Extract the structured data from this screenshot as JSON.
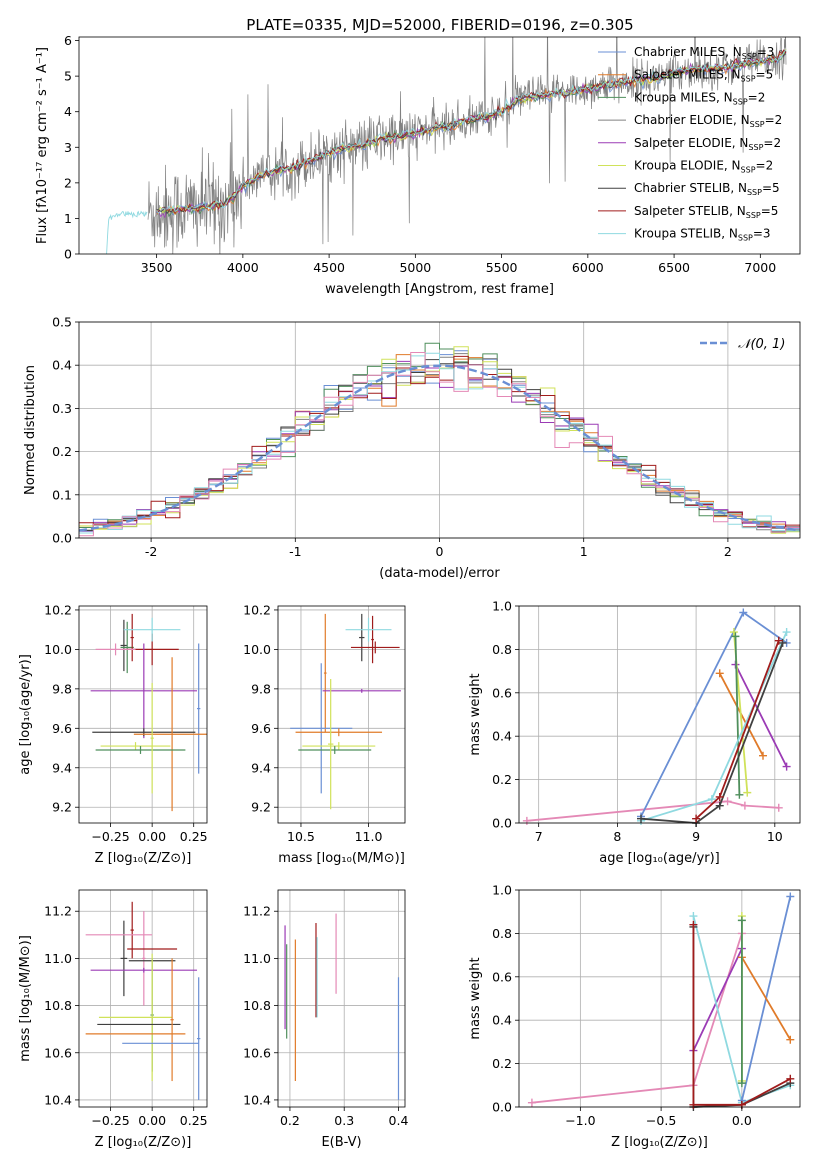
{
  "figure_title": "PLATE=0335, MJD=52000, FIBERID=0196, z=0.305",
  "colors": {
    "blue": "#6a8fd4",
    "orange": "#e07b2a",
    "green": "#4f8f5c",
    "purple": "#9b3bb5",
    "lime": "#d0e25a",
    "dark": "#404040",
    "red": "#a01c1c",
    "cyan": "#8fd9e0",
    "pink": "#e489b6",
    "gray": "#808080"
  },
  "chart_data": [
    {
      "id": "spectrum",
      "type": "line",
      "title": "",
      "xlabel": "wavelength [Angstrom, rest frame]",
      "ylabel": "Flux [fλ10⁻¹⁷ erg cm⁻² s⁻¹ A⁻¹]",
      "xlim": [
        3050,
        7230
      ],
      "ylim": [
        0,
        6.1
      ],
      "xticks": [
        3500,
        4000,
        4500,
        5000,
        5500,
        6000,
        6500,
        7000
      ],
      "yticks": [
        0,
        1,
        2,
        3,
        4,
        5,
        6
      ],
      "grid": false,
      "legend_position": "right",
      "legend": [
        {
          "label": "Chabrier MILES, N",
          "sub": "SSP",
          "tail": "=3",
          "color": "blue"
        },
        {
          "label": "Salpeter MILES, N",
          "sub": "SSP",
          "tail": "=5",
          "color": "orange"
        },
        {
          "label": "Kroupa MILES, N",
          "sub": "SSP",
          "tail": "=2",
          "color": "green"
        },
        {
          "label": "Chabrier ELODIE, N",
          "sub": "SSP",
          "tail": "=2",
          "color": "gray"
        },
        {
          "label": "Salpeter ELODIE, N",
          "sub": "SSP",
          "tail": "=2",
          "color": "purple"
        },
        {
          "label": "Kroupa ELODIE, N",
          "sub": "SSP",
          "tail": "=2",
          "color": "lime"
        },
        {
          "label": "Chabrier STELIB, N",
          "sub": "SSP",
          "tail": "=5",
          "color": "dark"
        },
        {
          "label": "Salpeter STELIB, N",
          "sub": "SSP",
          "tail": "=5",
          "color": "red"
        },
        {
          "label": "Kroupa STELIB, N",
          "sub": "SSP",
          "tail": "=3",
          "color": "cyan"
        }
      ],
      "continuum": [
        [
          3210,
          0.0
        ],
        [
          3220,
          1.0
        ],
        [
          3300,
          1.15
        ],
        [
          3400,
          1.12
        ],
        [
          3500,
          1.2
        ],
        [
          3600,
          1.25
        ],
        [
          3700,
          1.3
        ],
        [
          3800,
          1.35
        ],
        [
          3900,
          1.4
        ],
        [
          4000,
          1.9
        ],
        [
          4100,
          2.2
        ],
        [
          4200,
          2.35
        ],
        [
          4300,
          2.45
        ],
        [
          4400,
          2.65
        ],
        [
          4500,
          2.85
        ],
        [
          4600,
          3.0
        ],
        [
          4700,
          3.05
        ],
        [
          4800,
          3.25
        ],
        [
          4900,
          3.3
        ],
        [
          5000,
          3.4
        ],
        [
          5100,
          3.55
        ],
        [
          5200,
          3.6
        ],
        [
          5300,
          3.75
        ],
        [
          5400,
          3.85
        ],
        [
          5500,
          4.0
        ],
        [
          5600,
          4.35
        ],
        [
          5700,
          4.45
        ],
        [
          5800,
          4.5
        ],
        [
          5900,
          4.55
        ],
        [
          6000,
          4.65
        ],
        [
          6100,
          4.75
        ],
        [
          6200,
          4.8
        ],
        [
          6300,
          4.9
        ],
        [
          6400,
          4.95
        ],
        [
          6500,
          5.1
        ],
        [
          6600,
          5.2
        ],
        [
          6700,
          5.2
        ],
        [
          6800,
          5.25
        ],
        [
          6900,
          5.35
        ],
        [
          7000,
          5.4
        ],
        [
          7100,
          5.5
        ],
        [
          7160,
          5.75
        ]
      ],
      "noise_range": [
        3450,
        7150
      ]
    },
    {
      "id": "residuals",
      "type": "histogram",
      "title": "",
      "xlabel": "(data-model)/error",
      "ylabel": "Normed distribution",
      "xlim": [
        -2.5,
        2.5
      ],
      "ylim": [
        0,
        0.5
      ],
      "xticks": [
        -2,
        -1,
        0,
        1,
        2
      ],
      "yticks": [
        0.0,
        0.1,
        0.2,
        0.3,
        0.4,
        0.5
      ],
      "grid": true,
      "legend_position": "top-right",
      "legend": [
        {
          "label": "𝒩(0, 1)",
          "color": "blue",
          "style": "dashed"
        }
      ],
      "bin_width": 0.1,
      "series_colors": [
        "blue",
        "orange",
        "green",
        "gray",
        "purple",
        "lime",
        "dark",
        "red",
        "cyan",
        "pink"
      ]
    },
    {
      "id": "age_vs_z",
      "type": "errorbar",
      "xlabel": "Z [log₁₀(Z/Z⊙)]",
      "ylabel": "age  [log₁₀(age/yr)]",
      "xlim": [
        -0.44,
        0.33
      ],
      "ylim": [
        9.12,
        10.22
      ],
      "xticks": [
        -0.25,
        0.0,
        0.25
      ],
      "xticklabels": [
        "−0.25",
        "0.00",
        "0.25"
      ],
      "yticks": [
        9.2,
        9.4,
        9.6,
        9.8,
        10.0,
        10.2
      ],
      "grid": true,
      "points": [
        {
          "x": -0.17,
          "y": 10.02,
          "xerr": 0.02,
          "yerr": 0.13,
          "color": "dark"
        },
        {
          "x": -0.15,
          "y": 10.01,
          "xerr": 0.04,
          "yerr": 0.13,
          "color": "green"
        },
        {
          "x": -0.12,
          "y": 10.06,
          "xerr": 0.01,
          "yerr": 0.12,
          "color": "red"
        },
        {
          "x": 0.0,
          "y": 10.0,
          "xerr": 0.16,
          "yerr": 0.08,
          "color": "red"
        },
        {
          "x": 0.0,
          "y": 10.1,
          "xerr": 0.17,
          "yerr": 0.06,
          "color": "cyan"
        },
        {
          "x": -0.22,
          "y": 10.0,
          "xerr": 0.12,
          "yerr": 0.03,
          "color": "pink"
        },
        {
          "x": 0.28,
          "y": 9.7,
          "xerr": 0.01,
          "yerr": 0.33,
          "color": "blue"
        },
        {
          "x": -0.05,
          "y": 9.79,
          "xerr": 0.32,
          "yerr": 0.24,
          "color": "purple"
        },
        {
          "x": -0.05,
          "y": 9.58,
          "xerr": 0.31,
          "yerr": 0.02,
          "color": "dark"
        },
        {
          "x": 0.12,
          "y": 9.57,
          "xerr": 0.23,
          "yerr": 0.39,
          "color": "orange"
        },
        {
          "x": -0.1,
          "y": 9.51,
          "xerr": 0.21,
          "yerr": 0.02,
          "color": "lime"
        },
        {
          "x": -0.07,
          "y": 9.49,
          "xerr": 0.27,
          "yerr": 0.02,
          "color": "green"
        },
        {
          "x": 0.0,
          "y": 9.55,
          "xerr": 0.01,
          "yerr": 0.28,
          "color": "lime"
        }
      ]
    },
    {
      "id": "age_vs_mass",
      "type": "errorbar",
      "xlabel": "mass [log₁₀(M/M⊙)]",
      "ylabel": "",
      "xlim": [
        10.33,
        11.27
      ],
      "ylim": [
        9.12,
        10.22
      ],
      "xticks": [
        10.5,
        11.0
      ],
      "xticklabels": [
        "10.5",
        "11.0"
      ],
      "yticks": [
        9.2,
        9.4,
        9.6,
        9.8,
        10.0,
        10.2
      ],
      "grid": true,
      "points": [
        {
          "x": 10.95,
          "y": 10.06,
          "xerr": 0.02,
          "yerr": 0.12,
          "color": "dark"
        },
        {
          "x": 11.03,
          "y": 10.05,
          "xerr": 0.01,
          "yerr": 0.12,
          "color": "red"
        },
        {
          "x": 11.0,
          "y": 10.1,
          "xerr": 0.17,
          "yerr": 0.06,
          "color": "cyan"
        },
        {
          "x": 11.05,
          "y": 10.01,
          "xerr": 0.18,
          "yerr": 0.03,
          "color": "red"
        },
        {
          "x": 10.68,
          "y": 9.88,
          "xerr": 0.01,
          "yerr": 0.3,
          "color": "orange"
        },
        {
          "x": 10.95,
          "y": 9.79,
          "xerr": 0.29,
          "yerr": 0.01,
          "color": "purple"
        },
        {
          "x": 10.65,
          "y": 9.6,
          "xerr": 0.23,
          "yerr": 0.33,
          "color": "blue"
        },
        {
          "x": 10.78,
          "y": 9.58,
          "xerr": 0.32,
          "yerr": 0.02,
          "color": "orange"
        },
        {
          "x": 10.78,
          "y": 9.51,
          "xerr": 0.27,
          "yerr": 0.02,
          "color": "lime"
        },
        {
          "x": 10.75,
          "y": 9.49,
          "xerr": 0.27,
          "yerr": 0.02,
          "color": "green"
        },
        {
          "x": 10.72,
          "y": 9.52,
          "xerr": 0.02,
          "yerr": 0.33,
          "color": "lime"
        }
      ]
    },
    {
      "id": "weight_vs_age",
      "type": "line",
      "xlabel": "age  [log₁₀(age/yr)]",
      "ylabel": "mass weight",
      "xlim": [
        6.75,
        10.32
      ],
      "ylim": [
        0.0,
        1.0
      ],
      "xticks": [
        7,
        8,
        9,
        10
      ],
      "xticklabels": [
        "7",
        "8",
        "9",
        "10"
      ],
      "yticks": [
        0.0,
        0.2,
        0.4,
        0.6,
        0.8,
        1.0
      ],
      "grid": true,
      "series": [
        {
          "color": "pink",
          "points": [
            [
              6.85,
              0.01
            ],
            [
              9.4,
              0.1
            ],
            [
              9.62,
              0.08
            ],
            [
              10.05,
              0.07
            ]
          ]
        },
        {
          "color": "blue",
          "points": [
            [
              8.3,
              0.03
            ],
            [
              9.6,
              0.97
            ],
            [
              10.15,
              0.83
            ]
          ]
        },
        {
          "color": "orange",
          "points": [
            [
              9.3,
              0.69
            ],
            [
              9.85,
              0.31
            ]
          ]
        },
        {
          "color": "purple",
          "points": [
            [
              9.5,
              0.73
            ],
            [
              10.15,
              0.26
            ]
          ]
        },
        {
          "color": "lime",
          "points": [
            [
              9.48,
              0.88
            ],
            [
              9.65,
              0.14
            ]
          ]
        },
        {
          "color": "green",
          "points": [
            [
              9.5,
              0.86
            ],
            [
              9.55,
              0.13
            ]
          ]
        },
        {
          "color": "cyan",
          "points": [
            [
              8.3,
              0.01
            ],
            [
              9.2,
              0.11
            ],
            [
              10.15,
              0.88
            ]
          ]
        },
        {
          "color": "dark",
          "points": [
            [
              8.3,
              0.02
            ],
            [
              9.0,
              0.0
            ],
            [
              9.3,
              0.08
            ],
            [
              10.1,
              0.83
            ]
          ]
        },
        {
          "color": "red",
          "points": [
            [
              9.0,
              0.02
            ],
            [
              9.3,
              0.12
            ],
            [
              10.05,
              0.84
            ]
          ]
        }
      ]
    },
    {
      "id": "mass_vs_z",
      "type": "errorbar",
      "xlabel": "Z [log₁₀(Z/Z⊙)]",
      "ylabel": "mass [log₁₀(M/M⊙)]",
      "xlim": [
        -0.44,
        0.33
      ],
      "ylim": [
        10.37,
        11.29
      ],
      "xticks": [
        -0.25,
        0.0,
        0.25
      ],
      "xticklabels": [
        "−0.25",
        "0.00",
        "0.25"
      ],
      "yticks": [
        10.4,
        10.6,
        10.8,
        11.0,
        11.2
      ],
      "grid": true,
      "points": [
        {
          "x": -0.17,
          "y": 11.0,
          "xerr": 0.02,
          "yerr": 0.16,
          "color": "dark"
        },
        {
          "x": -0.12,
          "y": 11.12,
          "xerr": 0.01,
          "yerr": 0.12,
          "color": "red"
        },
        {
          "x": -0.05,
          "y": 11.0,
          "xerr": 0.01,
          "yerr": 0.2,
          "color": "pink"
        },
        {
          "x": -0.2,
          "y": 11.1,
          "xerr": 0.2,
          "yerr": 0.0,
          "color": "pink"
        },
        {
          "x": 0.0,
          "y": 11.04,
          "xerr": 0.15,
          "yerr": 0.0,
          "color": "red"
        },
        {
          "x": 0.0,
          "y": 10.99,
          "xerr": 0.14,
          "yerr": 0.0,
          "color": "dark"
        },
        {
          "x": -0.05,
          "y": 10.95,
          "xerr": 0.32,
          "yerr": 0.01,
          "color": "purple"
        },
        {
          "x": 0.0,
          "y": 10.76,
          "xerr": 0.01,
          "yerr": 0.24,
          "color": "green"
        },
        {
          "x": 0.0,
          "y": 10.75,
          "xerr": 0.01,
          "yerr": 0.27,
          "color": "lime"
        },
        {
          "x": -0.1,
          "y": 10.75,
          "xerr": 0.22,
          "yerr": 0.0,
          "color": "lime"
        },
        {
          "x": -0.08,
          "y": 10.72,
          "xerr": 0.25,
          "yerr": 0.0,
          "color": "dark"
        },
        {
          "x": -0.1,
          "y": 10.68,
          "xerr": 0.3,
          "yerr": 0.0,
          "color": "orange"
        },
        {
          "x": 0.12,
          "y": 10.74,
          "xerr": 0.01,
          "yerr": 0.26,
          "color": "orange"
        },
        {
          "x": 0.05,
          "y": 10.64,
          "xerr": 0.23,
          "yerr": 0.0,
          "color": "blue"
        },
        {
          "x": 0.28,
          "y": 10.66,
          "xerr": 0.01,
          "yerr": 0.26,
          "color": "blue"
        }
      ]
    },
    {
      "id": "mass_vs_ebv",
      "type": "errorbar",
      "xlabel": "E(B-V)",
      "ylabel": "",
      "xlim": [
        0.178,
        0.412
      ],
      "ylim": [
        10.37,
        11.29
      ],
      "xticks": [
        0.2,
        0.3,
        0.4
      ],
      "xticklabels": [
        "0.2",
        "0.3",
        "0.4"
      ],
      "yticks": [
        10.4,
        10.6,
        10.8,
        11.0,
        11.2
      ],
      "grid": true,
      "points": [
        {
          "x": 0.191,
          "y": 10.92,
          "xerr": 0.0,
          "yerr": 0.22,
          "color": "purple"
        },
        {
          "x": 0.194,
          "y": 10.86,
          "xerr": 0.0,
          "yerr": 0.2,
          "color": "green"
        },
        {
          "x": 0.21,
          "y": 10.78,
          "xerr": 0.0,
          "yerr": 0.3,
          "color": "orange"
        },
        {
          "x": 0.248,
          "y": 10.95,
          "xerr": 0.0,
          "yerr": 0.2,
          "color": "red"
        },
        {
          "x": 0.25,
          "y": 10.92,
          "xerr": 0.0,
          "yerr": 0.17,
          "color": "cyan"
        },
        {
          "x": 0.285,
          "y": 11.02,
          "xerr": 0.0,
          "yerr": 0.17,
          "color": "pink"
        },
        {
          "x": 0.4,
          "y": 10.66,
          "xerr": 0.0,
          "yerr": 0.26,
          "color": "blue"
        }
      ]
    },
    {
      "id": "weight_vs_z",
      "type": "line",
      "xlabel": "Z [log₁₀(Z/Z⊙)]",
      "ylabel": "mass weight",
      "xlim": [
        -1.38,
        0.36
      ],
      "ylim": [
        0.0,
        1.0
      ],
      "xticks": [
        -1.0,
        -0.5,
        0.0
      ],
      "xticklabels": [
        "−1.0",
        "−0.5",
        "0.0"
      ],
      "yticks": [
        0.0,
        0.2,
        0.4,
        0.6,
        0.8,
        1.0
      ],
      "grid": true,
      "series": [
        {
          "color": "pink",
          "points": [
            [
              -1.3,
              0.02
            ],
            [
              -0.3,
              0.1
            ],
            [
              0.0,
              0.8
            ]
          ]
        },
        {
          "color": "purple",
          "points": [
            [
              -0.3,
              0.26
            ],
            [
              0.0,
              0.73
            ]
          ]
        },
        {
          "color": "cyan",
          "points": [
            [
              -0.3,
              0.88
            ],
            [
              0.0,
              0.02
            ],
            [
              0.3,
              0.1
            ]
          ]
        },
        {
          "color": "blue",
          "points": [
            [
              0.0,
              0.03
            ],
            [
              0.3,
              0.97
            ]
          ]
        },
        {
          "color": "orange",
          "points": [
            [
              0.0,
              0.69
            ],
            [
              0.3,
              0.31
            ]
          ]
        },
        {
          "color": "lime",
          "points": [
            [
              0.0,
              0.88
            ],
            [
              0.0,
              0.12
            ]
          ]
        },
        {
          "color": "dark",
          "points": [
            [
              -0.3,
              0.83
            ],
            [
              -0.3,
              0.0
            ],
            [
              0.0,
              0.01
            ],
            [
              0.3,
              0.11
            ]
          ]
        },
        {
          "color": "red",
          "points": [
            [
              -0.3,
              0.84
            ],
            [
              -0.3,
              0.01
            ],
            [
              0.0,
              0.01
            ],
            [
              0.3,
              0.13
            ]
          ]
        },
        {
          "color": "green",
          "points": [
            [
              0.0,
              0.86
            ],
            [
              0.0,
              0.11
            ]
          ]
        }
      ]
    }
  ]
}
